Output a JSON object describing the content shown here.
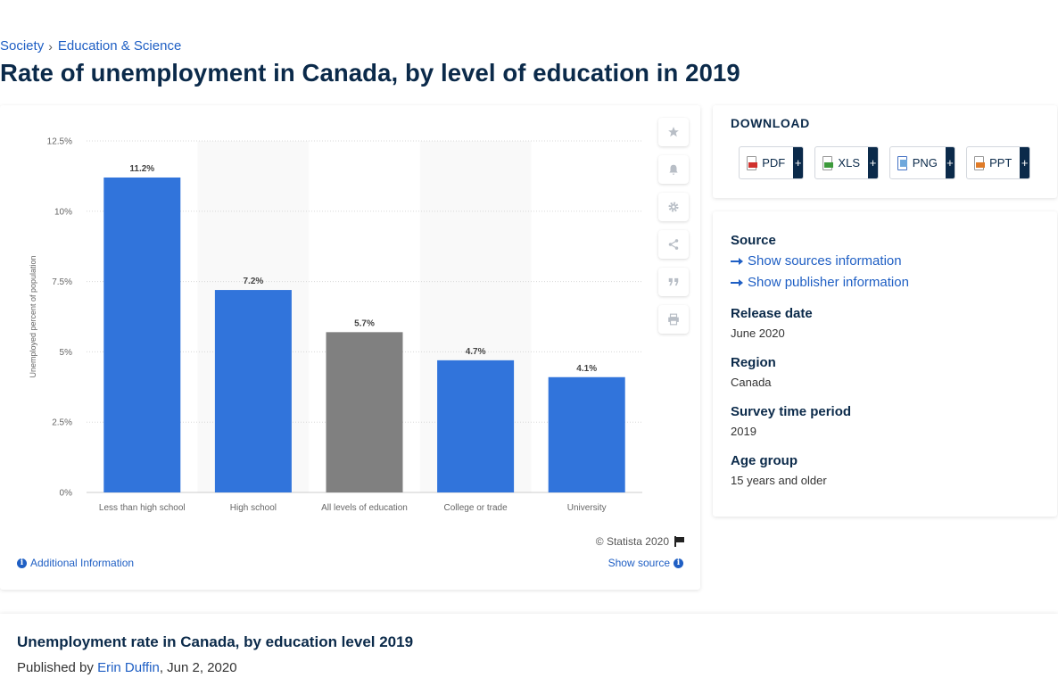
{
  "breadcrumb": {
    "items": [
      "Society",
      "Education & Science"
    ],
    "separator": "›"
  },
  "page_title": "Rate of unemployment in Canada, by level of education in 2019",
  "chart_data": {
    "type": "bar",
    "title": "",
    "xlabel": "",
    "ylabel": "Unemployed percent of population",
    "categories": [
      "Less than high school",
      "High school",
      "All levels of education",
      "College or trade",
      "University"
    ],
    "values": [
      11.2,
      7.2,
      5.7,
      4.7,
      4.1
    ],
    "data_labels": [
      "11.2%",
      "7.2%",
      "5.7%",
      "4.7%",
      "4.1%"
    ],
    "bar_colors": [
      "#3174db",
      "#3174db",
      "#808080",
      "#3174db",
      "#3174db"
    ],
    "ylim": [
      0,
      12.5
    ],
    "yticks": [
      0,
      2.5,
      5,
      7.5,
      10,
      12.5
    ],
    "ytick_labels": [
      "0%",
      "2.5%",
      "5%",
      "7.5%",
      "10%",
      "12.5%"
    ],
    "grid": true,
    "legend": "none"
  },
  "chart_footer": {
    "copyright": "© Statista 2020",
    "additional_info": "Additional Information",
    "show_source": "Show source"
  },
  "tools": [
    "star-icon",
    "bell-icon",
    "gear-icon",
    "share-icon",
    "quote-icon",
    "print-icon"
  ],
  "download": {
    "title": "DOWNLOAD",
    "buttons": [
      {
        "label": "PDF",
        "plus": "+"
      },
      {
        "label": "XLS",
        "plus": "+"
      },
      {
        "label": "PNG",
        "plus": "+"
      },
      {
        "label": "PPT",
        "plus": "+"
      }
    ]
  },
  "info": {
    "source_label": "Source",
    "show_sources": "Show sources information",
    "show_publisher": "Show publisher information",
    "release_label": "Release date",
    "release_value": "June 2020",
    "region_label": "Region",
    "region_value": "Canada",
    "period_label": "Survey time period",
    "period_value": "2019",
    "age_label": "Age group",
    "age_value": "15 years and older"
  },
  "bottom": {
    "title": "Unemployment rate in Canada, by education level 2019",
    "published_prefix": "Published by",
    "author": "Erin Duffin",
    "date": ", Jun 2, 2020"
  }
}
